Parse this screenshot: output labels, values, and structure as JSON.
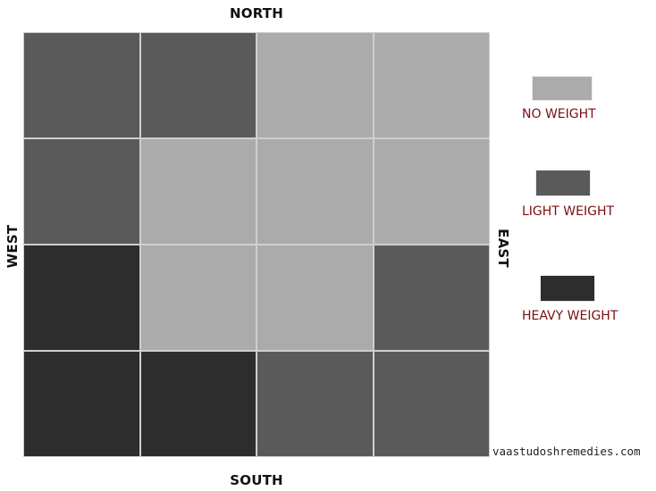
{
  "directions": {
    "north": "NORTH",
    "south": "SOUTH",
    "west": "WEST",
    "east": "EAST"
  },
  "colors": {
    "none": "#ababab",
    "light": "#5a5a5a",
    "heavy": "#2d2d2d",
    "legend_text": "#7a0f0f"
  },
  "grid": {
    "rows": [
      [
        "light",
        "light",
        "none",
        "none"
      ],
      [
        "light",
        "none",
        "none",
        "none"
      ],
      [
        "heavy",
        "none",
        "none",
        "light"
      ],
      [
        "heavy",
        "heavy",
        "light",
        "light"
      ]
    ]
  },
  "legend": {
    "none": "NO WEIGHT",
    "light": "LIGHT WEIGHT",
    "heavy": "HEAVY WEIGHT"
  },
  "watermark": "vaastudoshremedies.com"
}
